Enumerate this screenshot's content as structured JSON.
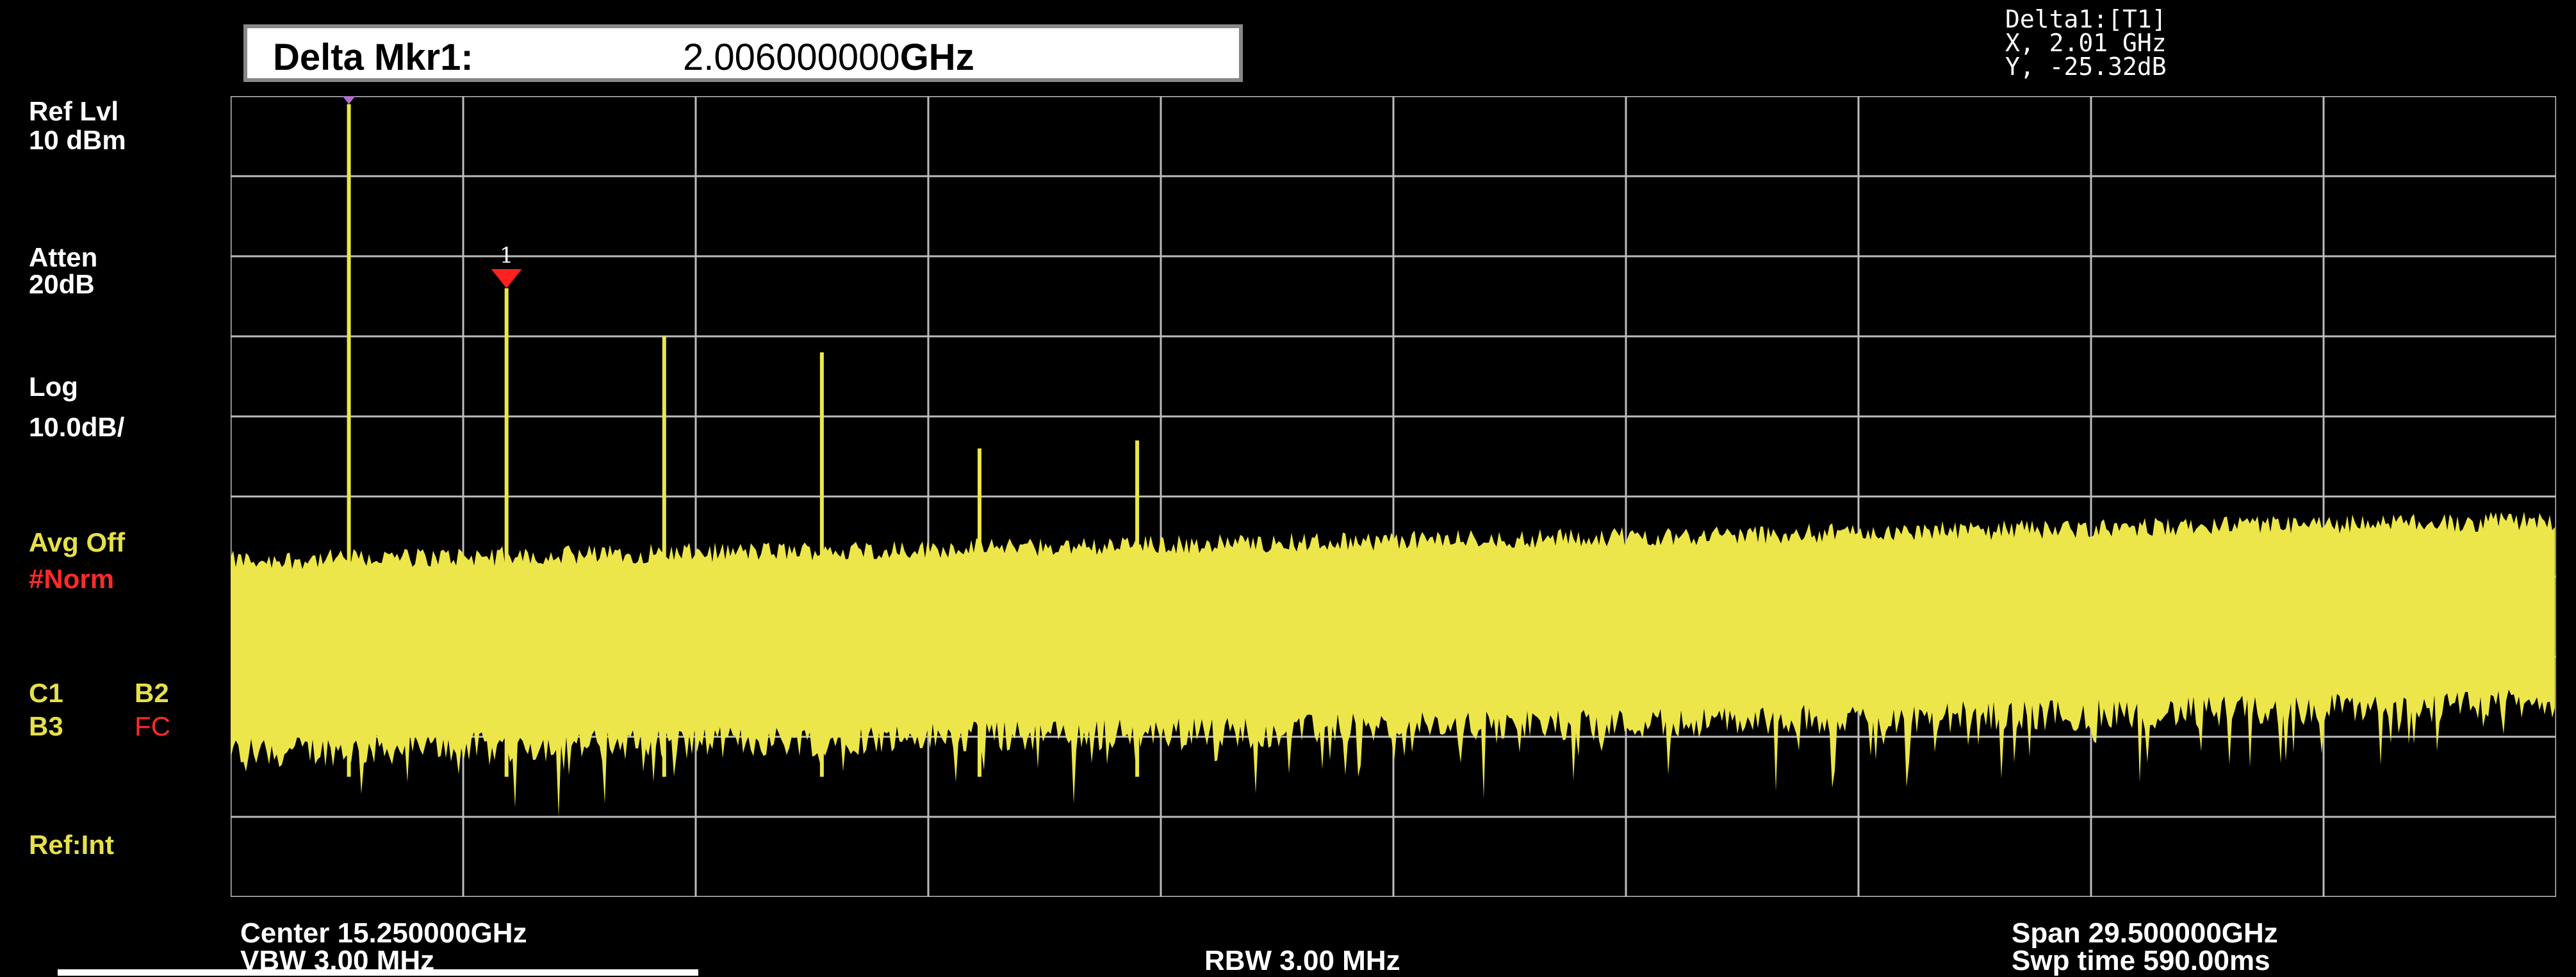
{
  "marker_box": {
    "label": "Delta Mkr1:",
    "value": "2.006000000",
    "unit": "GHz"
  },
  "delta_readout": {
    "line1": "Delta1:[T1]",
    "line2": "X, 2.01 GHz",
    "line3": "Y, -25.32dB"
  },
  "left_panel": {
    "ref_lvl_label": "Ref Lvl",
    "ref_lvl_value": "10 dBm",
    "atten_label": "Atten",
    "atten_value": "20dB",
    "scale_label": "Log",
    "scale_value": "10.0dB/",
    "avg": "Avg Off",
    "norm": "#Norm",
    "c1": "C1",
    "b2": "B2",
    "b3": "B3",
    "fc": "FC",
    "ref": "Ref:Int"
  },
  "footer": {
    "center": "Center 15.250000GHz",
    "vbw": "VBW 3.00 MHz",
    "rbw": "RBW 3.00 MHz",
    "span": "Span 29.500000GHz",
    "swp": "Swp time 590.00ms"
  },
  "markers": [
    {
      "label": "1R",
      "color": "#b06fd0"
    },
    {
      "label": "1",
      "color": "#ff2020"
    }
  ],
  "colors": {
    "trace": "#ece64a",
    "grid": "#bdbdbd",
    "bg": "#000000",
    "accent_red": "#ff2a2a"
  },
  "chart_data": {
    "type": "line",
    "x_unit": "GHz",
    "y_unit": "dBm",
    "xlim": [
      0.5,
      30.0
    ],
    "ylim": [
      -90,
      10
    ],
    "grid": true,
    "noise_floor_dbm": [
      -50,
      -48
    ],
    "peaks": [
      {
        "freq_ghz": 2.0,
        "level_dbm": 9
      },
      {
        "freq_ghz": 4.0,
        "level_dbm": -14
      },
      {
        "freq_ghz": 6.0,
        "level_dbm": -20
      },
      {
        "freq_ghz": 8.0,
        "level_dbm": -22
      },
      {
        "freq_ghz": 10.0,
        "level_dbm": -34
      },
      {
        "freq_ghz": 12.0,
        "level_dbm": -33
      }
    ]
  }
}
